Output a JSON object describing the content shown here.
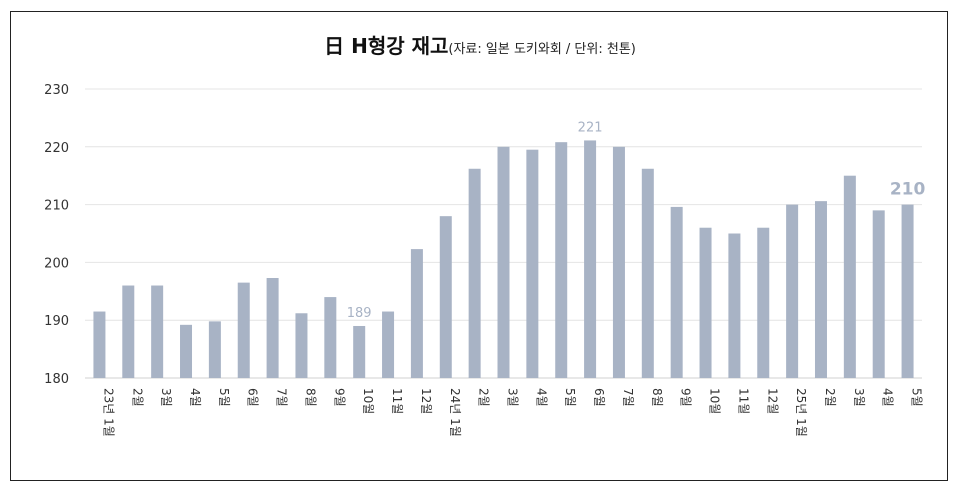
{
  "chart_data": {
    "type": "bar",
    "title": "日 H형강 재고",
    "subtitle": "(자료: 일본 도키와회 / 단위: 천톤)",
    "xlabel": "",
    "ylabel": "",
    "ylim": [
      180,
      230
    ],
    "yticks": [
      180,
      190,
      200,
      210,
      220,
      230
    ],
    "grid": true,
    "bar_color": "#a8b3c5",
    "label_color": "#a8b3c5",
    "categories": [
      "23년 1월",
      "2월",
      "3월",
      "4월",
      "5월",
      "6월",
      "7월",
      "8월",
      "9월",
      "10월",
      "11월",
      "12월",
      "24년 1월",
      "2월",
      "3월",
      "4월",
      "5월",
      "6월",
      "7월",
      "8월",
      "9월",
      "10월",
      "11월",
      "12월",
      "25년 1월",
      "2월",
      "3월",
      "4월",
      "5월"
    ],
    "values": [
      191.5,
      196,
      196,
      189.2,
      189.8,
      196.5,
      197.3,
      191.2,
      194,
      189,
      191.5,
      202.3,
      208,
      216.2,
      220,
      219.5,
      220.8,
      221.1,
      220,
      216.2,
      209.6,
      206,
      205,
      206,
      210,
      210.6,
      215,
      209,
      210
    ],
    "data_labels": [
      {
        "index": 9,
        "text": "189",
        "size": "small"
      },
      {
        "index": 17,
        "text": "221",
        "size": "small"
      },
      {
        "index": 28,
        "text": "210",
        "size": "large"
      }
    ]
  }
}
